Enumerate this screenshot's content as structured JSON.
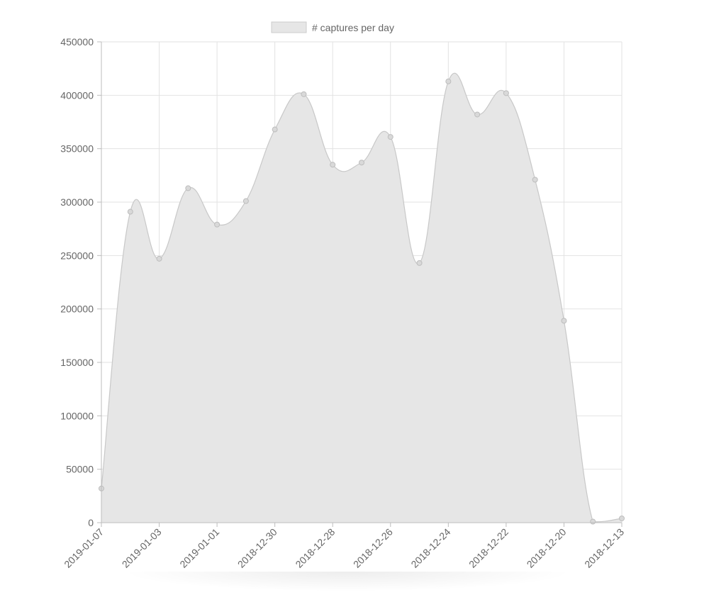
{
  "chart_data": {
    "type": "area",
    "legend": {
      "position": "top",
      "entries": [
        "# captures per day"
      ],
      "swatch_fill": "#e6e6e6",
      "swatch_stroke": "#cccccc"
    },
    "series": [
      {
        "name": "# captures per day",
        "fill": "#e6e6e6",
        "stroke": "#c8c8c8",
        "point_color": "#bdbdbd",
        "x": [
          "2019-01-07",
          "2019-01-06",
          "2019-01-03",
          "2019-01-02",
          "2019-01-01",
          "2018-12-31",
          "2018-12-30",
          "2018-12-29",
          "2018-12-28",
          "2018-12-27",
          "2018-12-26",
          "2018-12-25",
          "2018-12-24",
          "2018-12-23",
          "2018-12-22",
          "2018-12-21",
          "2018-12-20",
          "2018-12-19",
          "2018-12-13"
        ],
        "values": [
          32000,
          291000,
          247000,
          313000,
          279000,
          301000,
          368000,
          401000,
          335000,
          337000,
          361000,
          243000,
          413000,
          382000,
          402000,
          321000,
          189000,
          1000,
          4000
        ]
      }
    ],
    "x_tick_labels": [
      "2019-01-07",
      "2019-01-03",
      "2019-01-01",
      "2018-12-30",
      "2018-12-28",
      "2018-12-26",
      "2018-12-24",
      "2018-12-22",
      "2018-12-20",
      "2018-12-13"
    ],
    "y_ticks": [
      0,
      50000,
      100000,
      150000,
      200000,
      250000,
      300000,
      350000,
      400000,
      450000
    ],
    "ylim": [
      0,
      450000
    ],
    "grid": true,
    "grid_color": "#e2e2e2",
    "axis_color": "#bdbdbd",
    "tick_label_color": "#666666"
  }
}
